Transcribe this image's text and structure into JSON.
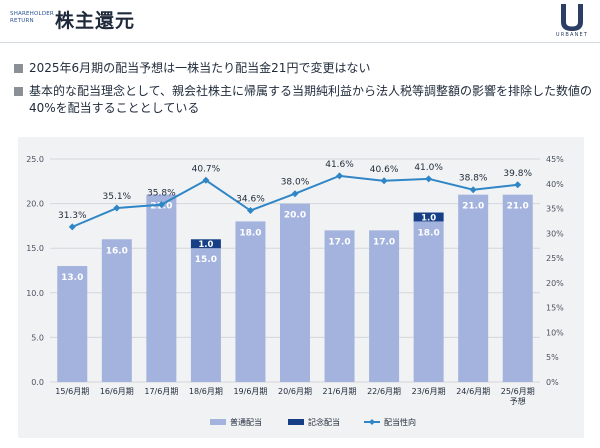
{
  "header": {
    "sub_label_line1": "SHAREHOLDER",
    "sub_label_line2": "RETURN",
    "title": "株主還元",
    "logo_text": "URBANET"
  },
  "bullets": [
    "2025年6月期の配当予想は一株当たり配当金21円で変更はない",
    "基本的な配当理念として、親会社株主に帰属する当期純利益から法人税等調整額の影響を排除した数値の40%を配当することとしている"
  ],
  "chart_data": {
    "type": "bar",
    "categories": [
      "15/6月期",
      "16/6月期",
      "17/6月期",
      "18/6月期",
      "19/6月期",
      "20/6月期",
      "21/6月期",
      "22/6月期",
      "23/6月期",
      "24/6月期",
      "25/6月期"
    ],
    "category_sublabels": [
      "",
      "",
      "",
      "",
      "",
      "",
      "",
      "",
      "",
      "",
      "予想"
    ],
    "series": [
      {
        "name": "普通配当",
        "kind": "bar",
        "values": [
          13.0,
          16.0,
          21.0,
          15.0,
          18.0,
          20.0,
          17.0,
          17.0,
          18.0,
          21.0,
          21.0
        ],
        "labels": [
          "13.0",
          "16.0",
          "21.0",
          "15.0",
          "18.0",
          "20.0",
          "17.0",
          "17.0",
          "18.0",
          "21.0",
          "21.0"
        ],
        "color": "#a3b3de"
      },
      {
        "name": "記念配当",
        "kind": "bar-stacked",
        "values": [
          null,
          null,
          null,
          1.0,
          null,
          null,
          null,
          null,
          1.0,
          null,
          null
        ],
        "labels": [
          "",
          "",
          "",
          "1.0",
          "",
          "",
          "",
          "",
          "1.0",
          "",
          ""
        ],
        "color": "#163f86"
      },
      {
        "name": "配当性向",
        "kind": "line",
        "axis": "right",
        "values": [
          31.3,
          35.1,
          35.8,
          40.7,
          34.6,
          38.0,
          41.6,
          40.6,
          41.0,
          38.8,
          39.8
        ],
        "labels": [
          "31.3%",
          "35.1%",
          "35.8%",
          "40.7%",
          "34.6%",
          "38.0%",
          "41.6%",
          "40.6%",
          "41.0%",
          "38.8%",
          "39.8%"
        ],
        "color": "#2f86c6"
      }
    ],
    "ylim": [
      0,
      25
    ],
    "y_ticks": [
      "0.0",
      "5.0",
      "10.0",
      "15.0",
      "20.0",
      "25.0"
    ],
    "y2lim": [
      0,
      45
    ],
    "y2_ticks": [
      "0%",
      "5%",
      "10%",
      "15%",
      "20%",
      "25%",
      "30%",
      "35%",
      "40%",
      "45%"
    ],
    "grid": true,
    "legend_position": "bottom-center"
  }
}
